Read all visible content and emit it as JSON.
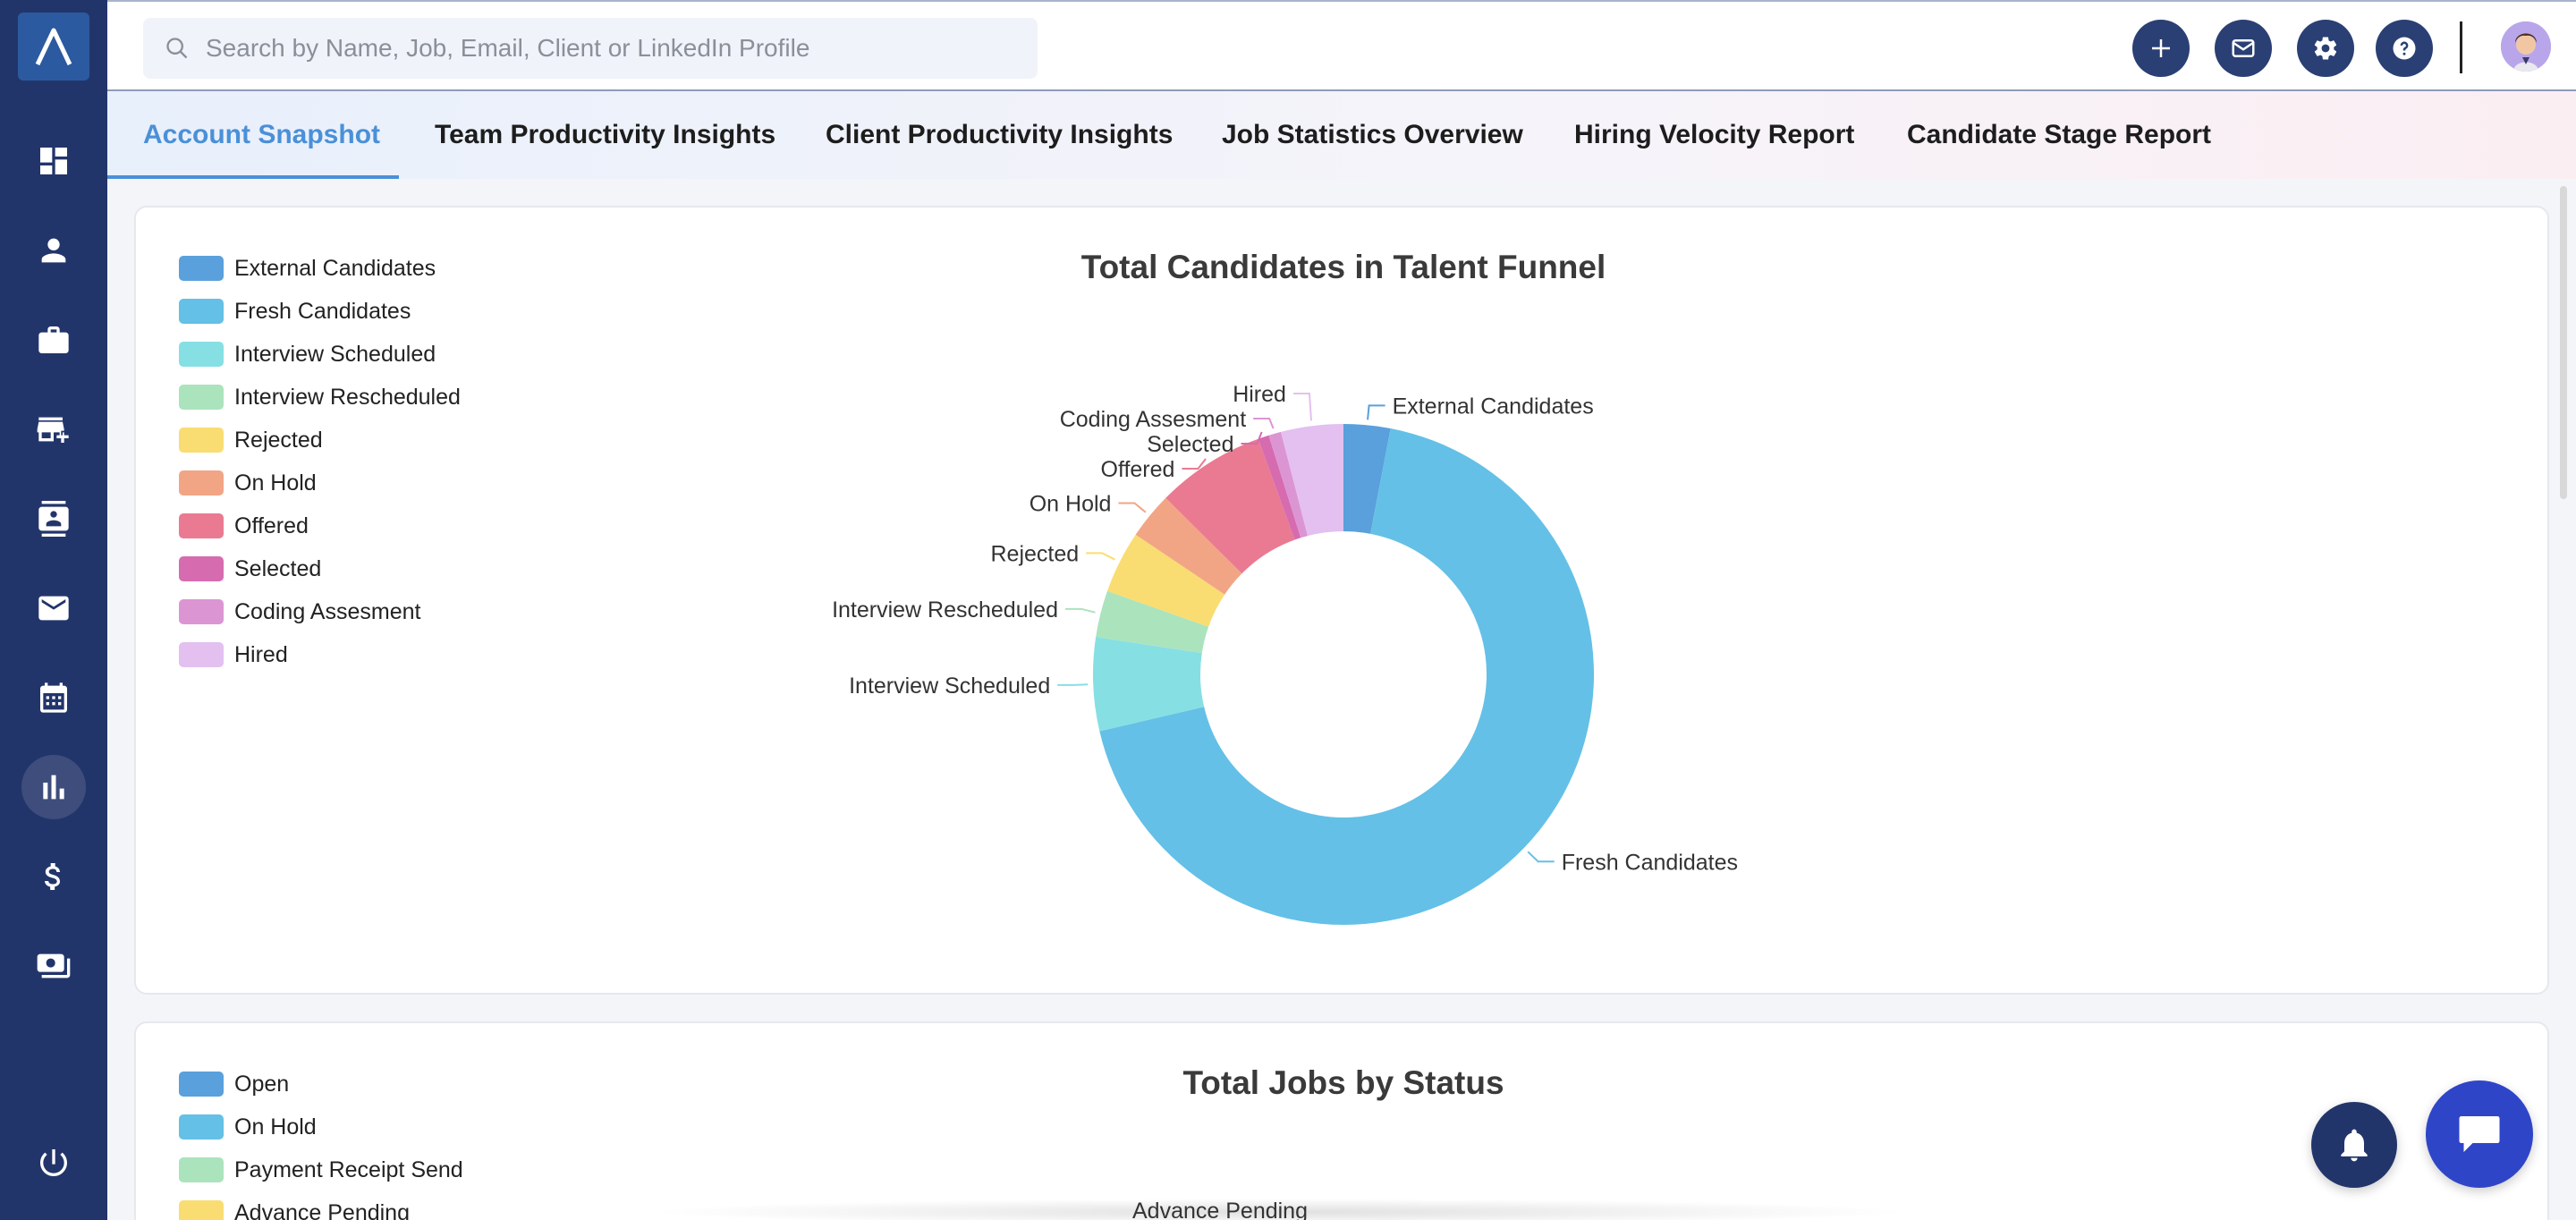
{
  "header": {
    "search_placeholder": "Search by Name, Job, Email, Client or LinkedIn Profile"
  },
  "tabs": [
    {
      "label": "Account Snapshot",
      "active": true
    },
    {
      "label": "Team Productivity Insights"
    },
    {
      "label": "Client Productivity Insights"
    },
    {
      "label": "Job Statistics Overview"
    },
    {
      "label": "Hiring Velocity Report"
    },
    {
      "label": "Candidate Stage Report"
    }
  ],
  "chart_data": [
    {
      "type": "pie",
      "title": "Total Candidates in Talent Funnel",
      "donut": true,
      "legend_placement": "top-left",
      "categories": [
        "External Candidates",
        "Fresh Candidates",
        "Interview Scheduled",
        "Interview Rescheduled",
        "Rejected",
        "On Hold",
        "Offered",
        "Selected",
        "Coding Assesment",
        "Hired"
      ],
      "values": [
        3,
        68,
        6,
        3,
        4,
        3,
        7,
        0.7,
        0.8,
        4
      ],
      "colors": [
        "#5aa0dc",
        "#64c0e6",
        "#86dfe3",
        "#abe3bd",
        "#f9dd72",
        "#f2a585",
        "#ea7a91",
        "#d66bb0",
        "#dc95d3",
        "#e3c0f0"
      ]
    },
    {
      "type": "pie",
      "title": "Total Jobs by Status",
      "legend_placement": "top-left",
      "categories": [
        "Open",
        "On Hold",
        "Payment Receipt Send",
        "Advance Pending"
      ],
      "colors": [
        "#5aa0dc",
        "#64c0e6",
        "#abe3bd",
        "#f9dd72"
      ]
    }
  ]
}
